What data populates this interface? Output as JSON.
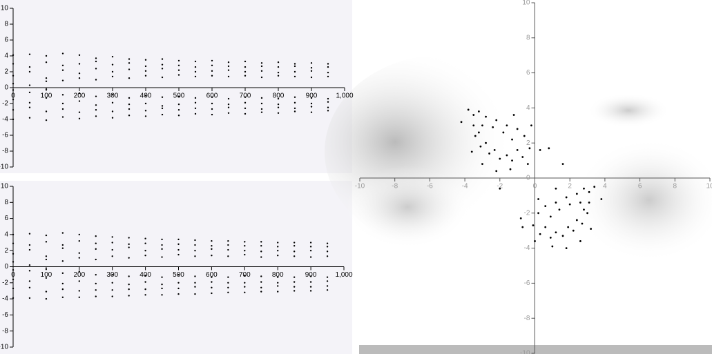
{
  "chart_data": [
    {
      "type": "scatter",
      "x": [
        0,
        50,
        100,
        150,
        200,
        250,
        300,
        350,
        400,
        450,
        500,
        550,
        600,
        650,
        700,
        750,
        800,
        850,
        900,
        950
      ],
      "series": [
        {
          "color": "#000",
          "values": [
            4.1,
            4.2,
            4.0,
            4.3,
            4.1,
            3.7,
            3.9,
            3.6,
            3.5,
            3.6,
            3.4,
            3.3,
            3.4,
            3.2,
            3.3,
            3.1,
            3.2,
            3.0,
            3.1,
            3.0
          ]
        },
        {
          "color": "#000",
          "values": [
            3.0,
            2.6,
            3.2,
            2.8,
            3.0,
            3.3,
            2.9,
            3.1,
            2.7,
            2.9,
            2.8,
            2.6,
            2.8,
            2.7,
            2.6,
            2.7,
            2.6,
            2.7,
            2.5,
            2.6
          ]
        },
        {
          "color": "#000",
          "values": [
            1.5,
            2.0,
            1.2,
            2.2,
            1.8,
            2.4,
            2.0,
            2.3,
            2.1,
            2.4,
            2.2,
            2.0,
            2.1,
            2.2,
            2.0,
            2.1,
            1.9,
            2.0,
            2.1,
            1.9
          ]
        },
        {
          "color": "#000",
          "values": [
            0.5,
            0.3,
            0.8,
            0.9,
            1.2,
            1.0,
            1.4,
            1.2,
            1.5,
            1.3,
            1.6,
            1.4,
            1.5,
            1.4,
            1.5,
            1.3,
            1.5,
            1.4,
            1.3,
            1.4
          ]
        },
        {
          "color": "#000",
          "values": [
            -0.3,
            -0.6,
            -0.2,
            -0.9,
            -0.7,
            -1.1,
            -0.9,
            -1.3,
            -1.0,
            -1.2,
            -1.1,
            -1.3,
            -1.2,
            -1.4,
            -1.2,
            -1.3,
            -1.4,
            -1.2,
            -1.3,
            -1.4
          ]
        },
        {
          "color": "#000",
          "values": [
            -1.5,
            -1.9,
            -1.3,
            -2.0,
            -1.7,
            -2.2,
            -1.9,
            -2.1,
            -2.0,
            -2.3,
            -2.1,
            -1.9,
            -2.0,
            -2.1,
            -1.9,
            -2.0,
            -2.1,
            -1.9,
            -2.0,
            -1.8
          ]
        },
        {
          "color": "#000",
          "values": [
            -2.8,
            -2.5,
            -3.0,
            -2.7,
            -3.1,
            -2.8,
            -3.0,
            -2.7,
            -2.9,
            -2.6,
            -2.8,
            -2.6,
            -2.7,
            -2.5,
            -2.6,
            -2.7,
            -2.5,
            -2.6,
            -2.4,
            -2.5
          ]
        },
        {
          "color": "#000",
          "values": [
            -4.0,
            -3.8,
            -4.1,
            -3.7,
            -3.9,
            -3.6,
            -3.8,
            -3.5,
            -3.6,
            -3.4,
            -3.5,
            -3.3,
            -3.4,
            -3.2,
            -3.3,
            -3.1,
            -3.2,
            -3.0,
            -3.1,
            -2.9
          ]
        }
      ],
      "xlim": [
        0,
        1000
      ],
      "ylim": [
        -10,
        10
      ],
      "xticks": [
        0,
        100,
        200,
        300,
        400,
        500,
        600,
        700,
        800,
        900,
        {
          "value": 1000,
          "label": "1,000"
        }
      ],
      "yticks": [
        -10,
        -8,
        -6,
        -4,
        -2,
        0,
        2,
        4,
        6,
        8,
        10
      ]
    },
    {
      "type": "scatter",
      "x": [
        0,
        50,
        100,
        150,
        200,
        250,
        300,
        350,
        400,
        450,
        500,
        550,
        600,
        650,
        700,
        750,
        800,
        850,
        900,
        950
      ],
      "series": [
        {
          "color": "#000",
          "values": [
            4.0,
            4.1,
            3.9,
            4.2,
            4.0,
            3.8,
            3.7,
            3.6,
            3.5,
            3.4,
            3.4,
            3.3,
            3.2,
            3.2,
            3.1,
            3.1,
            3.0,
            3.0,
            3.0,
            2.9
          ]
        },
        {
          "color": "#000",
          "values": [
            2.9,
            2.7,
            3.1,
            2.7,
            3.2,
            2.9,
            3.0,
            2.8,
            2.9,
            2.7,
            2.8,
            2.7,
            2.6,
            2.7,
            2.6,
            2.6,
            2.5,
            2.6,
            2.5,
            2.5
          ]
        },
        {
          "color": "#000",
          "values": [
            1.6,
            2.1,
            1.3,
            2.3,
            1.7,
            2.2,
            2.1,
            2.4,
            2.0,
            2.2,
            2.1,
            2.0,
            2.2,
            2.1,
            2.0,
            1.9,
            2.0,
            1.9,
            2.0,
            1.9
          ]
        },
        {
          "color": "#000",
          "values": [
            0.6,
            0.2,
            0.9,
            0.7,
            1.1,
            0.9,
            1.3,
            1.1,
            1.4,
            1.2,
            1.5,
            1.3,
            1.4,
            1.3,
            1.5,
            1.2,
            1.4,
            1.3,
            1.2,
            1.3
          ]
        },
        {
          "color": "#000",
          "values": [
            -0.4,
            -0.5,
            -0.3,
            -0.8,
            -0.6,
            -1.0,
            -1.0,
            -1.2,
            -1.1,
            -1.3,
            -1.0,
            -1.2,
            -1.3,
            -1.3,
            -1.1,
            -1.2,
            -1.3,
            -1.3,
            -1.2,
            -1.3
          ]
        },
        {
          "color": "#000",
          "values": [
            -1.6,
            -1.8,
            -1.4,
            -2.1,
            -1.8,
            -2.1,
            -2.0,
            -2.2,
            -1.9,
            -2.2,
            -2.0,
            -2.0,
            -1.9,
            -2.0,
            -2.0,
            -1.9,
            -2.0,
            -1.9,
            -1.9,
            -1.8
          ]
        },
        {
          "color": "#000",
          "values": [
            -2.7,
            -2.6,
            -3.1,
            -2.8,
            -3.0,
            -2.9,
            -2.9,
            -2.8,
            -2.8,
            -2.7,
            -2.7,
            -2.5,
            -2.6,
            -2.6,
            -2.5,
            -2.6,
            -2.4,
            -2.5,
            -2.5,
            -2.4
          ]
        },
        {
          "color": "#000",
          "values": [
            -3.9,
            -3.9,
            -4.0,
            -3.8,
            -3.8,
            -3.7,
            -3.7,
            -3.6,
            -3.5,
            -3.5,
            -3.4,
            -3.4,
            -3.3,
            -3.2,
            -3.2,
            -3.1,
            -3.1,
            -3.0,
            -3.0,
            -2.9
          ]
        }
      ],
      "xlim": [
        0,
        1000
      ],
      "ylim": [
        -10,
        10
      ],
      "xticks": [
        0,
        100,
        200,
        300,
        400,
        500,
        600,
        700,
        800,
        900,
        {
          "value": 1000,
          "label": "1,000"
        }
      ],
      "yticks": [
        -10,
        -8,
        -6,
        -4,
        -2,
        0,
        2,
        4,
        6,
        8,
        10
      ]
    },
    {
      "type": "scatter",
      "color": "#000",
      "x": [
        -3.8,
        -3.5,
        -3.2,
        -2.8,
        -2.2,
        -1.6,
        -1.0,
        -0.6,
        -0.3,
        -0.7,
        -1.3,
        -2.0,
        -2.6,
        -3.1,
        -3.4,
        -3.5,
        -3.0,
        -2.4,
        -1.8,
        -1.3,
        -1.0,
        -1.6,
        -2.3,
        -2.8,
        -3.2,
        -3.6,
        -3.0,
        -2.2,
        -1.4,
        -0.4,
        0.3,
        0.8,
        -0.2,
        -1.2,
        -4.2,
        -2.0,
        3.4,
        3.1,
        2.8,
        2.4,
        1.8,
        1.2,
        0.6,
        0.2,
        -0.1,
        0.3,
        0.9,
        1.6,
        2.2,
        2.7,
        3.0,
        3.1,
        2.6,
        2.0,
        1.4,
        0.9,
        0.6,
        1.2,
        1.9,
        2.4,
        2.8,
        3.2,
        2.6,
        1.8,
        1.0,
        0.0,
        -0.7,
        -0.8,
        0.2,
        1.2,
        3.8,
        1.6
      ],
      "values": [
        3.9,
        3.6,
        3.8,
        3.5,
        3.3,
        3.0,
        2.8,
        2.4,
        1.7,
        1.2,
        1.0,
        1.1,
        1.4,
        1.8,
        2.4,
        3.0,
        3.0,
        2.9,
        2.6,
        2.2,
        1.6,
        1.3,
        1.6,
        2.0,
        2.6,
        1.5,
        0.8,
        0.4,
        0.5,
        0.8,
        1.6,
        1.7,
        3.0,
        3.6,
        3.2,
        -0.6,
        -0.5,
        -0.8,
        -0.6,
        -0.9,
        -1.1,
        -1.4,
        -1.6,
        -2.0,
        -2.7,
        -3.2,
        -3.4,
        -3.3,
        -3.0,
        -2.6,
        -2.0,
        -1.4,
        -1.4,
        -1.5,
        -1.8,
        -2.2,
        -2.8,
        -3.1,
        -2.8,
        -2.4,
        -1.8,
        -2.9,
        -3.6,
        -4.0,
        -3.9,
        -3.6,
        -2.8,
        -2.3,
        -1.2,
        -0.6,
        -1.2,
        0.8
      ],
      "xlim": [
        -10,
        10
      ],
      "ylim": [
        -10,
        10
      ],
      "xticks": [
        -10,
        -8,
        -6,
        -4,
        -2,
        0,
        2,
        4,
        6,
        8,
        10
      ],
      "yticks": [
        -10,
        -8,
        -6,
        -4,
        -2,
        0,
        2,
        4,
        6,
        8,
        10
      ]
    }
  ]
}
